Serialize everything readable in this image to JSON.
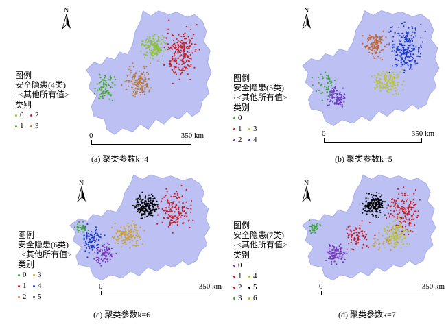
{
  "colors": {
    "province_fill": "#bcc0f2",
    "province_stroke": "#aab0ea"
  },
  "panels": [
    {
      "id": "a",
      "caption": "(a) 聚类参数k=4",
      "legend": {
        "title": "图例",
        "layer": "安全隐患(4类)",
        "other": "<其他所有值>",
        "category_title": "类别",
        "classes": [
          {
            "label": "0",
            "color": "#8ec03c"
          },
          {
            "label": "2",
            "color": "#c8202a"
          },
          {
            "label": "1",
            "color": "#5fae3a"
          },
          {
            "label": "3",
            "color": "#b87a3c"
          }
        ]
      },
      "scale": {
        "zero": "0",
        "end": "350 km"
      },
      "north": "N",
      "clusters": [
        {
          "color": "#c8202a",
          "n": 210,
          "region": "northeast"
        },
        {
          "color": "#8ec03c",
          "n": 150,
          "region": "central_north"
        },
        {
          "color": "#b87a3c",
          "n": 130,
          "region": "central"
        },
        {
          "color": "#4aa33a",
          "n": 90,
          "region": "west"
        }
      ]
    },
    {
      "id": "b",
      "caption": "(b) 聚类参数k=5",
      "legend": {
        "title": "图例",
        "layer": "安全隐患(5类)",
        "other": "<其他所有值>",
        "category_title": "类别",
        "classes": [
          {
            "label": "0",
            "color": "#3aa33a"
          },
          {
            "label": "",
            "color": ""
          },
          {
            "label": "1",
            "color": "#c8202a"
          },
          {
            "label": "3",
            "color": "#b8c23c"
          },
          {
            "label": "2",
            "color": "#6a3cc0"
          },
          {
            "label": "4",
            "color": "#1e3cc8"
          }
        ]
      },
      "scale": {
        "zero": "0",
        "end": "350 km"
      },
      "north": "N",
      "clusters": [
        {
          "color": "#1e3cc8",
          "n": 210,
          "region": "northeast"
        },
        {
          "color": "#b8c23c",
          "n": 150,
          "region": "central_south"
        },
        {
          "color": "#c06a3c",
          "n": 120,
          "region": "central_north"
        },
        {
          "color": "#6a3cc0",
          "n": 90,
          "region": "southwest"
        },
        {
          "color": "#3aa33a",
          "n": 40,
          "region": "west"
        }
      ]
    },
    {
      "id": "c",
      "caption": "(c) 聚类参数k=6",
      "legend": {
        "title": "图例",
        "layer": "安全隐患(6类)",
        "other": "<其他所有值>",
        "category_title": "类别",
        "classes": [
          {
            "label": "0",
            "color": "#3aa33a"
          },
          {
            "label": "3",
            "color": "#c8a03c"
          },
          {
            "label": "1",
            "color": "#c8202a"
          },
          {
            "label": "4",
            "color": "#1e3cc8"
          },
          {
            "label": "2",
            "color": "#b86a3c"
          },
          {
            "label": "5",
            "color": "#000000"
          }
        ]
      },
      "scale": {
        "zero": "0",
        "end": "350 km"
      },
      "north": "N",
      "clusters": [
        {
          "color": "#000000",
          "n": 170,
          "region": "central_north"
        },
        {
          "color": "#c8202a",
          "n": 140,
          "region": "northeast"
        },
        {
          "color": "#c8a03c",
          "n": 140,
          "region": "central"
        },
        {
          "color": "#1e3cc8",
          "n": 90,
          "region": "west"
        },
        {
          "color": "#7a3cc0",
          "n": 70,
          "region": "southwest"
        },
        {
          "color": "#3aa33a",
          "n": 30,
          "region": "far_west"
        }
      ]
    },
    {
      "id": "d",
      "caption": "(d) 聚类参数k=7",
      "legend": {
        "title": "图例",
        "layer": "安全隐患(7类)",
        "other": "<其他所有值>",
        "category_title": "类别",
        "classes": [
          {
            "label": "0",
            "color": "#7a3cc0"
          },
          {
            "label": "",
            "color": ""
          },
          {
            "label": "1",
            "color": "#c8202a"
          },
          {
            "label": "4",
            "color": "#b8c23c"
          },
          {
            "label": "2",
            "color": "#c8202a"
          },
          {
            "label": "5",
            "color": "#000000"
          },
          {
            "label": "3",
            "color": "#3aa33a"
          },
          {
            "label": "6",
            "color": "#c8a03c"
          }
        ]
      },
      "scale": {
        "zero": "0",
        "end": "350 km"
      },
      "north": "N",
      "clusters": [
        {
          "color": "#000000",
          "n": 160,
          "region": "central_north"
        },
        {
          "color": "#c8202a",
          "n": 150,
          "region": "northeast"
        },
        {
          "color": "#b8c23c",
          "n": 120,
          "region": "central_east"
        },
        {
          "color": "#c8202a",
          "n": 70,
          "region": "central"
        },
        {
          "color": "#7a3cc0",
          "n": 90,
          "region": "southwest"
        },
        {
          "color": "#3aa33a",
          "n": 30,
          "region": "far_west"
        },
        {
          "color": "#c8a03c",
          "n": 40,
          "region": "central_south"
        }
      ]
    }
  ]
}
